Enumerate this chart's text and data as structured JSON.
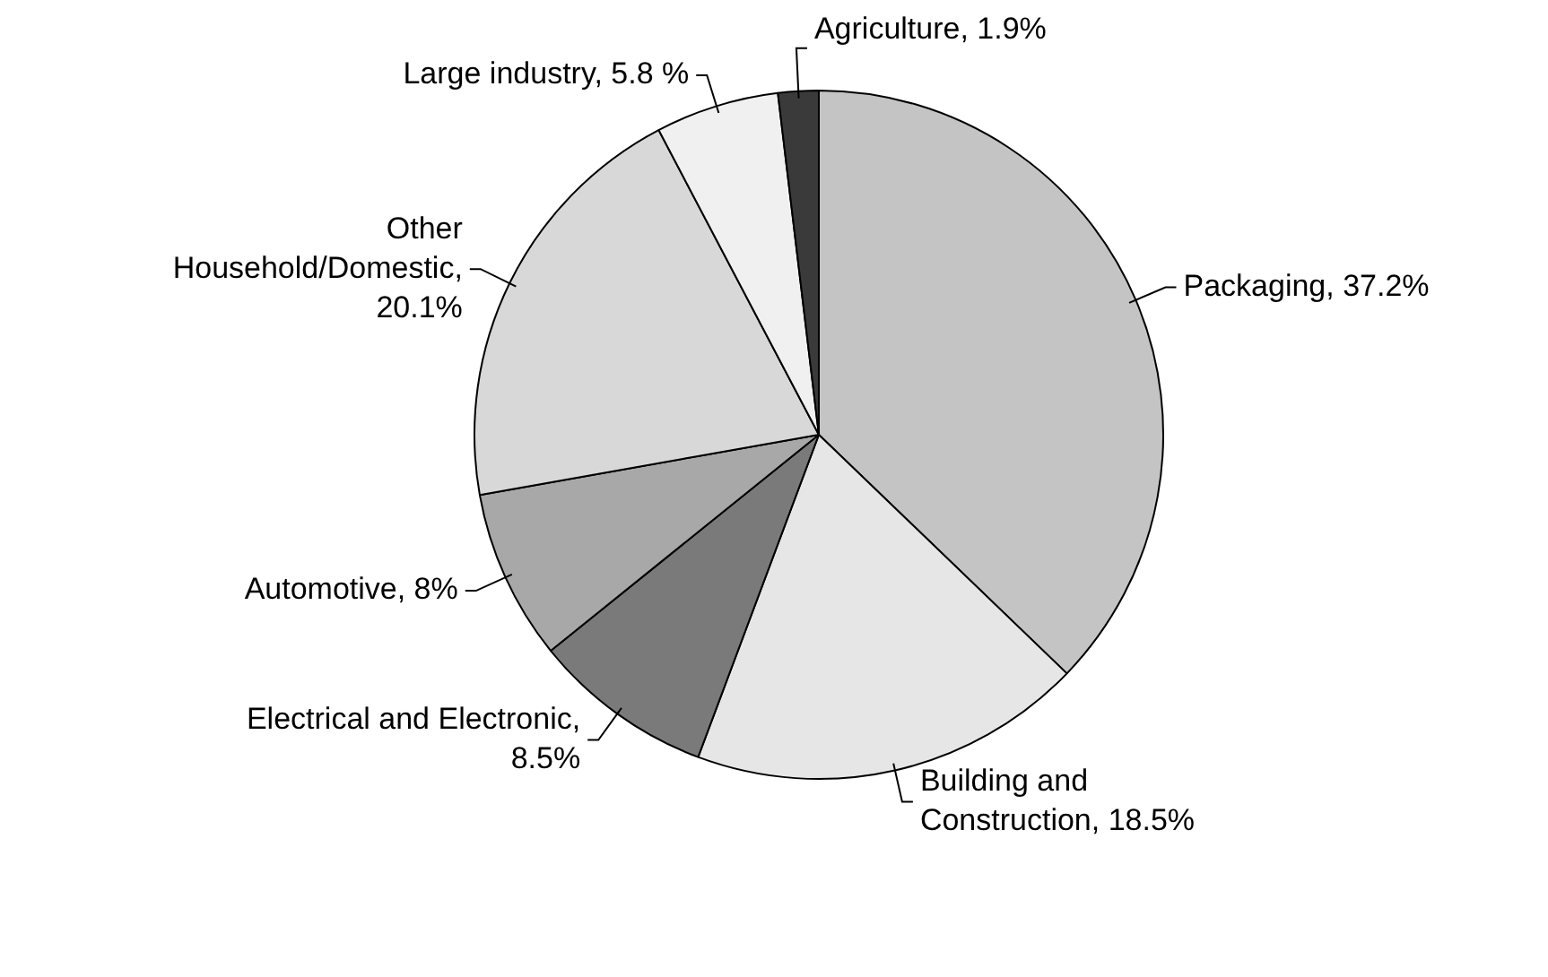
{
  "chart_data": {
    "type": "pie",
    "categories": [
      "Packaging, 37.2%",
      "Building and Construction, 18.5%",
      "Electrical and Electronic, 8.5%",
      "Automotive, 8%",
      "Other Household/Domestic, 20.1%",
      "Large industry, 5.8 %",
      "Agriculture, 1.9%"
    ],
    "values": [
      37.2,
      18.5,
      8.5,
      8,
      20.1,
      5.8,
      1.9
    ],
    "colors": [
      "#c4c4c4",
      "#e6e6e6",
      "#7a7a7a",
      "#a8a8a8",
      "#d8d8d8",
      "#f0f0f0",
      "#3a3a3a"
    ],
    "legend": false
  }
}
